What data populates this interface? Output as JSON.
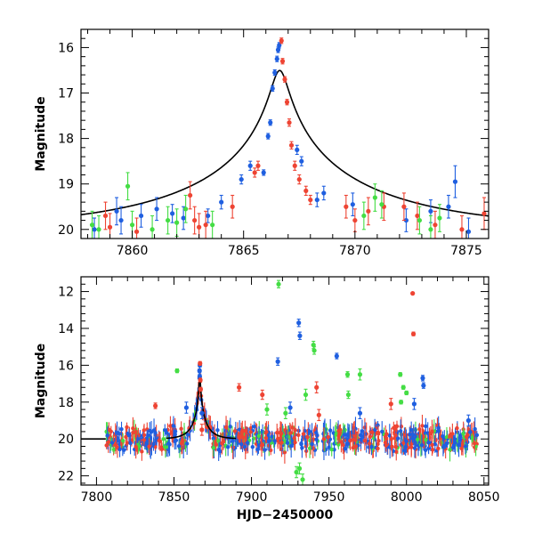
{
  "chart_data": [
    {
      "type": "scatter",
      "title": "",
      "xlabel": "",
      "ylabel": "Magnitude",
      "xlim": [
        7857.7,
        7876.0
      ],
      "ylim": [
        20.2,
        15.6
      ],
      "y_inverted": true,
      "x_ticks": [
        7860,
        7865,
        7870,
        7875
      ],
      "y_ticks": [
        16,
        17,
        18,
        19,
        20
      ],
      "colors": {
        "blue": "#1f5fe0",
        "red": "#ee4433",
        "green": "#44dd44"
      },
      "model_curve": {
        "t0": 7866.62,
        "tE": 9.0,
        "u0": 0.04,
        "baseline": 20.0
      },
      "series": [
        {
          "color": "blue",
          "x": [
            7865.9,
            7866.1,
            7866.2,
            7866.3,
            7866.4,
            7866.5,
            7866.55,
            7866.6,
            7864.9,
            7865.3,
            7867.4,
            7867.6,
            7868.3,
            7868.6,
            7863.4,
            7864.0,
            7859.3,
            7859.5,
            7860.4,
            7861.1,
            7862.3,
            7872.3,
            7873.4,
            7874.2,
            7874.5,
            7875.1,
            7858.3,
            7861.8,
            7869.9
          ],
          "y": [
            18.75,
            17.95,
            17.65,
            16.9,
            16.55,
            16.25,
            16.05,
            15.95,
            18.9,
            18.6,
            18.25,
            18.5,
            19.35,
            19.2,
            19.7,
            19.4,
            19.6,
            19.8,
            19.7,
            19.55,
            19.75,
            19.8,
            19.6,
            19.5,
            18.95,
            20.05,
            20.0,
            19.65,
            19.45
          ],
          "yerr": [
            0.06,
            0.06,
            0.06,
            0.06,
            0.06,
            0.06,
            0.06,
            0.06,
            0.1,
            0.1,
            0.1,
            0.1,
            0.15,
            0.15,
            0.15,
            0.15,
            0.3,
            0.3,
            0.25,
            0.25,
            0.25,
            0.25,
            0.25,
            0.25,
            0.35,
            0.3,
            0.25,
            0.2,
            0.25
          ]
        },
        {
          "color": "red",
          "x": [
            7866.7,
            7866.75,
            7866.85,
            7866.95,
            7867.05,
            7867.15,
            7867.3,
            7867.5,
            7867.8,
            7868.0,
            7865.5,
            7865.65,
            7862.6,
            7862.8,
            7863.0,
            7863.3,
            7858.8,
            7859.0,
            7860.2,
            7869.6,
            7870.0,
            7870.6,
            7871.3,
            7872.2,
            7872.8,
            7873.6,
            7874.8,
            7875.8,
            7864.5
          ],
          "y": [
            15.85,
            16.3,
            16.7,
            17.2,
            17.65,
            18.15,
            18.6,
            18.9,
            19.15,
            19.35,
            18.75,
            18.6,
            19.25,
            19.8,
            19.95,
            19.9,
            19.7,
            19.95,
            20.05,
            19.5,
            19.8,
            19.6,
            19.5,
            19.5,
            19.7,
            19.9,
            20.0,
            19.65,
            19.5
          ],
          "yerr": [
            0.06,
            0.06,
            0.06,
            0.06,
            0.08,
            0.08,
            0.1,
            0.1,
            0.1,
            0.1,
            0.1,
            0.1,
            0.3,
            0.3,
            0.3,
            0.3,
            0.3,
            0.3,
            0.3,
            0.25,
            0.25,
            0.3,
            0.3,
            0.3,
            0.3,
            0.3,
            0.3,
            0.35,
            0.25
          ]
        },
        {
          "color": "green",
          "x": [
            7858.2,
            7858.5,
            7859.8,
            7860.0,
            7860.9,
            7861.6,
            7862.0,
            7863.6,
            7870.4,
            7870.9,
            7871.2,
            7872.9,
            7873.4,
            7873.8,
            7862.4
          ],
          "y": [
            19.9,
            20.0,
            19.05,
            19.9,
            20.0,
            19.8,
            19.85,
            19.9,
            19.7,
            19.3,
            19.45,
            19.8,
            20.0,
            19.75,
            19.55
          ],
          "yerr": [
            0.3,
            0.3,
            0.3,
            0.3,
            0.3,
            0.3,
            0.3,
            0.3,
            0.3,
            0.3,
            0.3,
            0.3,
            0.3,
            0.3,
            0.3
          ]
        }
      ]
    },
    {
      "type": "scatter",
      "title": "",
      "xlabel": "HJD−2450000",
      "ylabel": "Magnitude",
      "xlim": [
        7790,
        8053
      ],
      "ylim": [
        22.5,
        11.2
      ],
      "y_inverted": true,
      "x_ticks": [
        7800,
        7850,
        7900,
        7950,
        8000,
        8050
      ],
      "y_ticks": [
        12,
        14,
        16,
        18,
        20,
        22
      ],
      "colors": {
        "blue": "#1f5fe0",
        "red": "#ee4433",
        "green": "#44dd44"
      },
      "model_curve": {
        "t0": 7866.62,
        "tE": 9.0,
        "u0": 0.04,
        "baseline": 20.0,
        "xstart": 7790,
        "xend": 7806
      },
      "baseline_band": {
        "xmin": 7806,
        "xmax": 8046,
        "center": 20.0,
        "spread": 0.5
      },
      "series": [
        {
          "color": "blue",
          "x": [
            7866.5,
            7866.6,
            7866.7,
            7930.5,
            7931.2,
            7917.0,
            7955.0,
            8010.5,
            8011.0,
            8005.0,
            7858.0,
            7868.0,
            7925.0,
            7970.0,
            8040.0
          ],
          "y": [
            16.3,
            16.6,
            16.0,
            13.7,
            14.4,
            15.8,
            15.5,
            16.7,
            17.1,
            18.1,
            18.3,
            18.6,
            18.3,
            18.6,
            19.0
          ],
          "yerr": [
            0.1,
            0.1,
            0.1,
            0.2,
            0.2,
            0.2,
            0.15,
            0.15,
            0.15,
            0.3,
            0.3,
            0.3,
            0.3,
            0.3,
            0.3
          ]
        },
        {
          "color": "red",
          "x": [
            7866.8,
            7867.0,
            7867.2,
            8004.0,
            8004.5,
            7892.0,
            7907.0,
            7942.0,
            7838.0,
            7943.5,
            7990.0,
            7868.0
          ],
          "y": [
            15.9,
            16.8,
            17.3,
            12.1,
            14.3,
            17.2,
            17.6,
            17.2,
            18.2,
            18.7,
            18.1,
            19.5
          ],
          "yerr": [
            0.1,
            0.1,
            0.1,
            0.05,
            0.1,
            0.2,
            0.25,
            0.3,
            0.15,
            0.3,
            0.3,
            0.3
          ]
        },
        {
          "color": "green",
          "x": [
            7917.5,
            7940.0,
            7940.5,
            7852.0,
            7962.0,
            7970.0,
            7996.0,
            7998.0,
            7962.5,
            7935.0,
            7996.5,
            8000.0,
            7910.0,
            7922.0,
            7933.0,
            7931.0,
            7929.0
          ],
          "y": [
            11.6,
            14.9,
            15.2,
            16.3,
            16.5,
            16.5,
            16.5,
            17.2,
            17.6,
            17.6,
            18.0,
            17.5,
            18.4,
            18.6,
            22.2,
            21.6,
            21.8
          ],
          "yerr": [
            0.2,
            0.2,
            0.2,
            0.1,
            0.15,
            0.3,
            0.1,
            0.1,
            0.2,
            0.3,
            0.1,
            0.1,
            0.3,
            0.3,
            0.3,
            0.3,
            0.3
          ]
        }
      ]
    }
  ]
}
